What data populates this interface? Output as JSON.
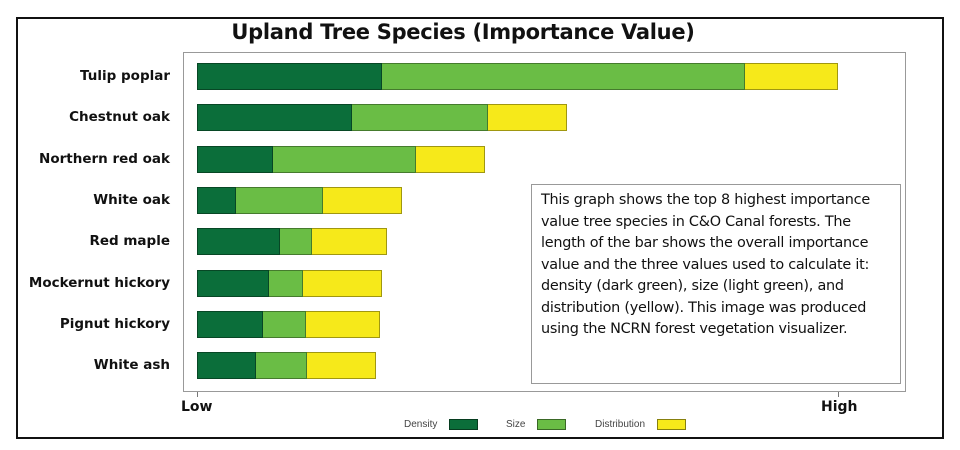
{
  "chart_data": {
    "type": "bar",
    "orientation": "horizontal",
    "stacked": true,
    "title": "Upland Tree Species (Importance Value)",
    "xlabel": "",
    "ylabel": "",
    "x_tick_labels": [
      "Low",
      "High"
    ],
    "xlim": [
      0,
      100
    ],
    "grid": false,
    "legend_position": "bottom",
    "categories": [
      "Tulip poplar",
      "Chestnut oak",
      "Northern red oak",
      "White oak",
      "Red maple",
      "Mockernut hickory",
      "Pignut hickory",
      "White ash"
    ],
    "series": [
      {
        "name": "Density",
        "color": "#0b6e3a",
        "values": [
          28.9,
          24.2,
          11.9,
          6.1,
          12.9,
          11.2,
          10.3,
          9.2
        ]
      },
      {
        "name": "Size",
        "color": "#6abd45",
        "values": [
          56.6,
          21.2,
          22.3,
          13.6,
          5.1,
          5.3,
          6.7,
          8.0
        ]
      },
      {
        "name": "Distribution",
        "color": "#f6e91a",
        "values": [
          14.5,
          12.3,
          10.8,
          12.3,
          11.6,
          12.3,
          11.5,
          10.8
        ]
      }
    ],
    "totals": [
      100,
      57.7,
      45.0,
      32.0,
      29.6,
      28.8,
      28.5,
      28.0
    ],
    "annotation": "This graph shows the top 8 highest importance value tree species in C&O Canal forests. The length of the bar shows the overall importance value and the three values used to calculate it: density (dark green), size (light green), and distribution (yellow). This image was produced using the NCRN forest vegetation visualizer."
  },
  "axis": {
    "low": "Low",
    "high": "High"
  },
  "legend": {
    "density": "Density",
    "size": "Size",
    "distribution": "Distribution"
  }
}
